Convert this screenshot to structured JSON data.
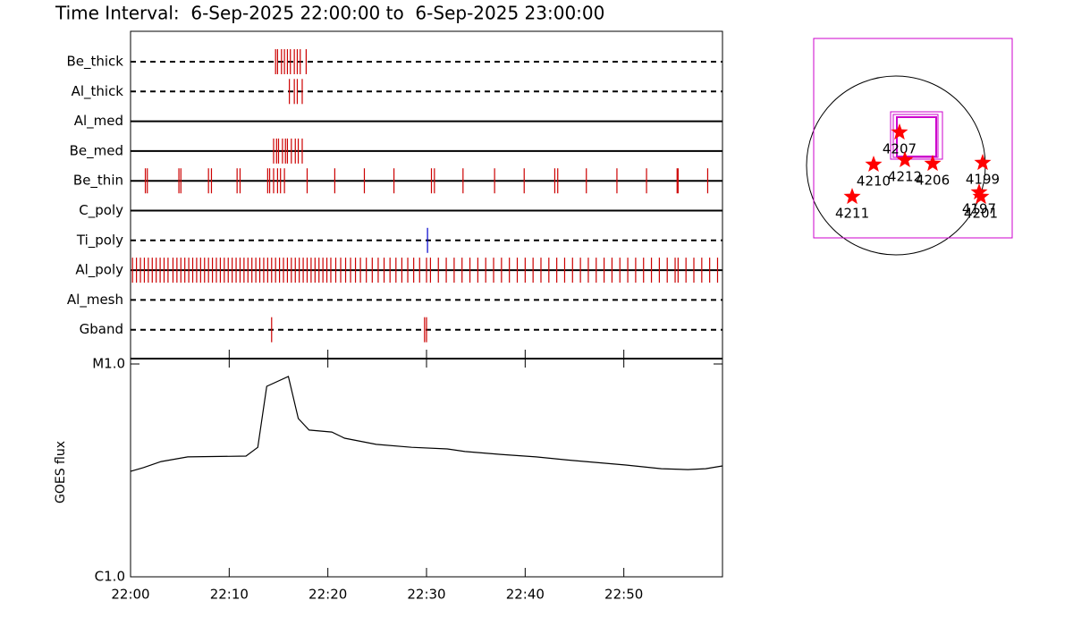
{
  "chart_data": {
    "type": "xrt_summary",
    "title": "Time Interval:  6-Sep-2025 22:00:00 to  6-Sep-2025 23:00:00",
    "xlim": [
      0,
      60
    ],
    "xticks": [
      {
        "value": 0,
        "label": "22:00"
      },
      {
        "value": 10,
        "label": "22:10"
      },
      {
        "value": 20,
        "label": "22:20"
      },
      {
        "value": 30,
        "label": "22:30"
      },
      {
        "value": 40,
        "label": "22:40"
      },
      {
        "value": 50,
        "label": "22:50"
      }
    ],
    "filters": [
      {
        "name": "Be_thick",
        "dashed": true,
        "color": "#cc0000",
        "times": [
          14.7,
          14.9,
          15.3,
          15.6,
          15.9,
          16.2,
          16.6,
          16.9,
          17.2,
          17.8
        ]
      },
      {
        "name": "Al_thick",
        "dashed": true,
        "color": "#cc0000",
        "times": [
          16.1,
          16.6,
          16.9,
          17.4
        ]
      },
      {
        "name": "Al_med",
        "dashed": false,
        "color": "#cc0000",
        "times": []
      },
      {
        "name": "Be_med",
        "dashed": false,
        "color": "#cc0000",
        "times": [
          14.5,
          14.8,
          15.0,
          15.4,
          15.7,
          15.9,
          16.3,
          16.7,
          17.0,
          17.4
        ]
      },
      {
        "name": "Be_thin",
        "dashed": false,
        "color": "#cc0000",
        "times": [
          1.5,
          1.7,
          4.9,
          5.1,
          7.9,
          8.2,
          10.8,
          11.1,
          13.9,
          14.1,
          14.5,
          14.9,
          15.2,
          15.6,
          17.9,
          20.7,
          23.7,
          26.7,
          30.5,
          30.8,
          33.7,
          36.9,
          39.9,
          43.0,
          43.3,
          46.2,
          49.3,
          52.3,
          55.4,
          55.5,
          58.5
        ]
      },
      {
        "name": "C_poly",
        "dashed": false,
        "color": "#cc0000",
        "times": []
      },
      {
        "name": "Ti_poly",
        "dashed": true,
        "color": "#0000cc",
        "times": [
          30.1
        ]
      },
      {
        "name": "Al_poly",
        "dashed": false,
        "color": "#cc0000",
        "times": [
          0.2,
          0.6,
          1.0,
          1.4,
          1.8,
          2.2,
          2.6,
          3.0,
          3.4,
          3.8,
          4.3,
          4.7,
          5.1,
          5.5,
          5.9,
          6.3,
          6.7,
          7.1,
          7.5,
          7.9,
          8.3,
          8.7,
          9.1,
          9.5,
          9.9,
          10.3,
          10.7,
          11.1,
          11.5,
          11.9,
          12.3,
          12.7,
          13.1,
          13.5,
          13.9,
          14.3,
          14.7,
          15.1,
          15.5,
          15.9,
          16.3,
          16.7,
          17.1,
          17.5,
          17.9,
          18.3,
          18.7,
          19.1,
          19.5,
          19.9,
          20.3,
          20.8,
          21.3,
          21.8,
          22.3,
          22.8,
          23.3,
          23.9,
          24.5,
          25.1,
          25.7,
          26.3,
          26.9,
          27.5,
          28.1,
          28.7,
          29.3,
          30.0,
          30.4,
          31.2,
          32.0,
          32.8,
          33.6,
          34.4,
          35.2,
          36.0,
          36.8,
          37.6,
          38.4,
          39.2,
          40.0,
          40.8,
          41.6,
          42.4,
          43.2,
          44.0,
          44.8,
          45.6,
          46.4,
          47.2,
          48.0,
          48.8,
          49.6,
          50.4,
          51.2,
          52.0,
          52.8,
          53.6,
          54.4,
          55.2,
          55.5,
          56.3,
          57.1,
          57.9,
          58.7,
          59.5
        ]
      },
      {
        "name": "Al_mesh",
        "dashed": true,
        "color": "#cc0000",
        "times": []
      },
      {
        "name": "Gband",
        "dashed": true,
        "color": "#cc0000",
        "times": [
          14.3,
          29.8,
          30.0
        ]
      }
    ],
    "goes": {
      "ylabel": "GOES flux",
      "log_scale": true,
      "color": "#000000",
      "ylim": [
        1e-06,
        1e-05
      ],
      "yticks": [
        {
          "value": 1e-06,
          "label": "C1.0"
        },
        {
          "value": 1e-05,
          "label": "M1.0"
        }
      ],
      "x": [
        0,
        1.3,
        3.1,
        5.8,
        11.7,
        12.9,
        13.8,
        16.0,
        17.0,
        18.1,
        20.4,
        21.7,
        24.9,
        28.5,
        32.1,
        33.9,
        37.5,
        41.1,
        44.8,
        50.2,
        53.8,
        56.5,
        58.3,
        60
      ],
      "values": [
        3.13e-06,
        3.26e-06,
        3.48e-06,
        3.66e-06,
        3.69e-06,
        4.06e-06,
        7.85e-06,
        8.73e-06,
        5.54e-06,
        4.89e-06,
        4.79e-06,
        4.48e-06,
        4.19e-06,
        4.06e-06,
        3.99e-06,
        3.88e-06,
        3.76e-06,
        3.66e-06,
        3.52e-06,
        3.35e-06,
        3.22e-06,
        3.19e-06,
        3.22e-06,
        3.32e-06
      ]
    },
    "sun_map": {
      "star_color": "#ff0000",
      "fov_color": "#cc00cc",
      "regions": [
        {
          "label": "4207",
          "x": 38,
          "y": 355
        },
        {
          "label": "4210",
          "x": -240,
          "y": 10
        },
        {
          "label": "4212",
          "x": 96,
          "y": 58
        },
        {
          "label": "4206",
          "x": 394,
          "y": 19
        },
        {
          "label": "4199",
          "x": 931,
          "y": 29
        },
        {
          "label": "4211",
          "x": -470,
          "y": -336
        },
        {
          "label": "4197",
          "x": 893,
          "y": -288
        },
        {
          "label": "4201",
          "x": 912,
          "y": -336
        }
      ]
    }
  }
}
